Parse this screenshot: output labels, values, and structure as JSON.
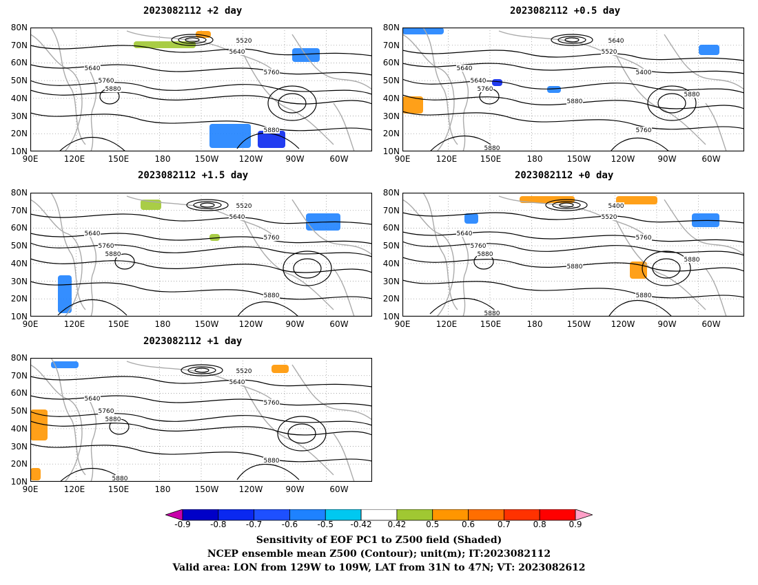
{
  "panels": [
    {
      "id": "p2",
      "title": "2023082112 +2 day"
    },
    {
      "id": "p05",
      "title": "2023082112 +0.5 day"
    },
    {
      "id": "p15",
      "title": "2023082112 +1.5 day"
    },
    {
      "id": "p0",
      "title": "2023082112 +0 day"
    },
    {
      "id": "p1",
      "title": "2023082112 +1 day"
    }
  ],
  "lat_ticks": [
    "80N",
    "70N",
    "60N",
    "50N",
    "40N",
    "30N",
    "20N",
    "10N"
  ],
  "lon_ticks": [
    "90E",
    "120E",
    "150E",
    "180",
    "150W",
    "120W",
    "90W",
    "60W"
  ],
  "contour_labels": {
    "p2": [
      "5520",
      "5640",
      "5640",
      "5760",
      "5760",
      "5880",
      "5880"
    ],
    "p05": [
      "5640",
      "5520",
      "5640",
      "5400",
      "5640",
      "5760",
      "5760",
      "5880",
      "5880",
      "5880"
    ],
    "p15": [
      "5520",
      "5640",
      "5640",
      "5760",
      "5760",
      "5880",
      "5880"
    ],
    "p0": [
      "5400",
      "5520",
      "5640",
      "5760",
      "5760",
      "5880",
      "5880",
      "5880",
      "5880",
      "5880"
    ],
    "p1": [
      "5520",
      "5640",
      "5640",
      "5760",
      "5760",
      "5880",
      "5880",
      "5880"
    ]
  },
  "colorbar": {
    "labels": [
      "-0.9",
      "-0.8",
      "-0.7",
      "-0.6",
      "-0.5",
      "-0.42",
      "0.42",
      "0.5",
      "0.6",
      "0.7",
      "0.8",
      "0.9"
    ],
    "colors": [
      "#0000c8",
      "#0a28f0",
      "#1e50ff",
      "#1e82ff",
      "#00c8f0",
      "#ffffff",
      "#a0c832",
      "#ff9600",
      "#ff6e00",
      "#ff3200",
      "#ff0000"
    ],
    "low_extend": "#c800aa",
    "high_extend": "#ffa0c8"
  },
  "captions": [
    "Sensitivity of EOF PC1 to Z500 field (Shaded)",
    "NCEP ensemble mean Z500 (Contour); unit(m); IT:2023082112",
    "Valid area: LON from 129W to 109W, LAT from 31N to 47N; VT: 2023082612"
  ]
}
